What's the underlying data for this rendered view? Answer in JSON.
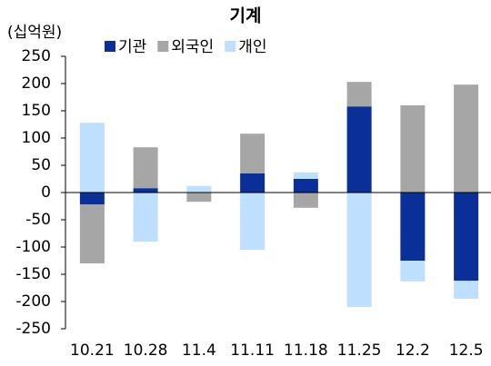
{
  "chart_data": {
    "type": "stacked_bar",
    "title": "기계",
    "ylabel": "(십억원)",
    "categories": [
      "10.21",
      "10.28",
      "11.4",
      "11.11",
      "11.18",
      "11.25",
      "12.2",
      "12.5"
    ],
    "series": [
      {
        "name": "기관",
        "color": "#0a2f96",
        "values": [
          -22,
          8,
          0,
          35,
          25,
          158,
          -125,
          -162
        ]
      },
      {
        "name": "외국인",
        "color": "#a6a6a6",
        "values": [
          -108,
          75,
          -17,
          73,
          -28,
          45,
          160,
          198
        ]
      },
      {
        "name": "개인",
        "color": "#bfdfff",
        "values": [
          128,
          -90,
          12,
          -105,
          12,
          -210,
          -38,
          -33
        ]
      }
    ],
    "ylim": [
      -250,
      250
    ],
    "yticks": [
      -250,
      -200,
      -150,
      -100,
      -50,
      0,
      50,
      100,
      150,
      200,
      250
    ]
  }
}
